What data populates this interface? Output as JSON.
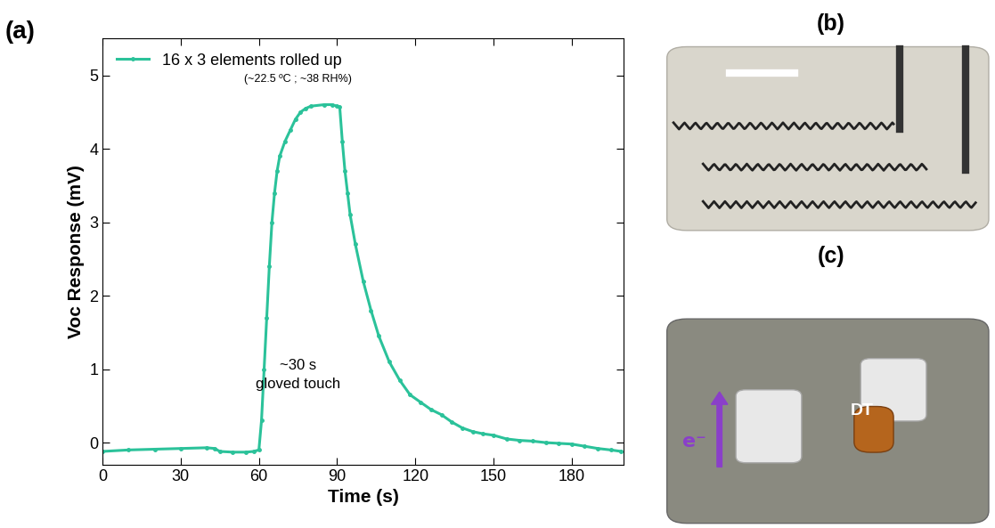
{
  "chart_data": {
    "type": "line",
    "title": "(a)",
    "x_label": "Time (s)",
    "y_label": "Voc Response (mV)",
    "annotations": [
      "(~22.5 ºC ; ~38 RH%)",
      "~30 s",
      "gloved touch"
    ],
    "xlim": [
      0,
      200
    ],
    "xticks": [
      0,
      30,
      60,
      90,
      120,
      150,
      180
    ],
    "ylim": [
      -0.3,
      5.5
    ],
    "yticks": [
      0,
      1,
      2,
      3,
      4,
      5
    ],
    "legend": "upper left",
    "grid": false,
    "series": [
      {
        "name": "16 x 3 elements rolled up",
        "color": "#2bc29a",
        "marker": "dot",
        "line_style": "solid",
        "x": [
          0,
          10,
          20,
          30,
          40,
          43,
          45,
          50,
          55,
          58,
          60,
          61,
          62,
          63,
          64,
          65,
          66,
          67,
          68,
          70,
          72,
          74,
          76,
          78,
          80,
          85,
          88,
          90,
          91,
          92,
          93,
          94,
          95,
          97,
          100,
          103,
          106,
          110,
          114,
          118,
          122,
          126,
          130,
          134,
          138,
          142,
          146,
          150,
          155,
          160,
          165,
          170,
          175,
          180,
          185,
          190,
          195,
          199
        ],
        "values": [
          -0.12,
          -0.1,
          -0.09,
          -0.08,
          -0.07,
          -0.08,
          -0.12,
          -0.13,
          -0.13,
          -0.12,
          -0.1,
          0.3,
          1.0,
          1.7,
          2.4,
          3.0,
          3.4,
          3.7,
          3.9,
          4.1,
          4.25,
          4.4,
          4.5,
          4.55,
          4.58,
          4.6,
          4.6,
          4.58,
          4.57,
          4.1,
          3.7,
          3.4,
          3.1,
          2.7,
          2.2,
          1.8,
          1.45,
          1.1,
          0.85,
          0.65,
          0.55,
          0.45,
          0.38,
          0.28,
          0.2,
          0.15,
          0.12,
          0.1,
          0.05,
          0.03,
          0.02,
          0.0,
          -0.01,
          -0.02,
          -0.05,
          -0.08,
          -0.1,
          -0.12
        ]
      }
    ]
  },
  "panels": [
    {
      "label": "(b)"
    },
    {
      "label": "(c)",
      "texts": [
        "e⁻",
        "DT"
      ]
    }
  ]
}
